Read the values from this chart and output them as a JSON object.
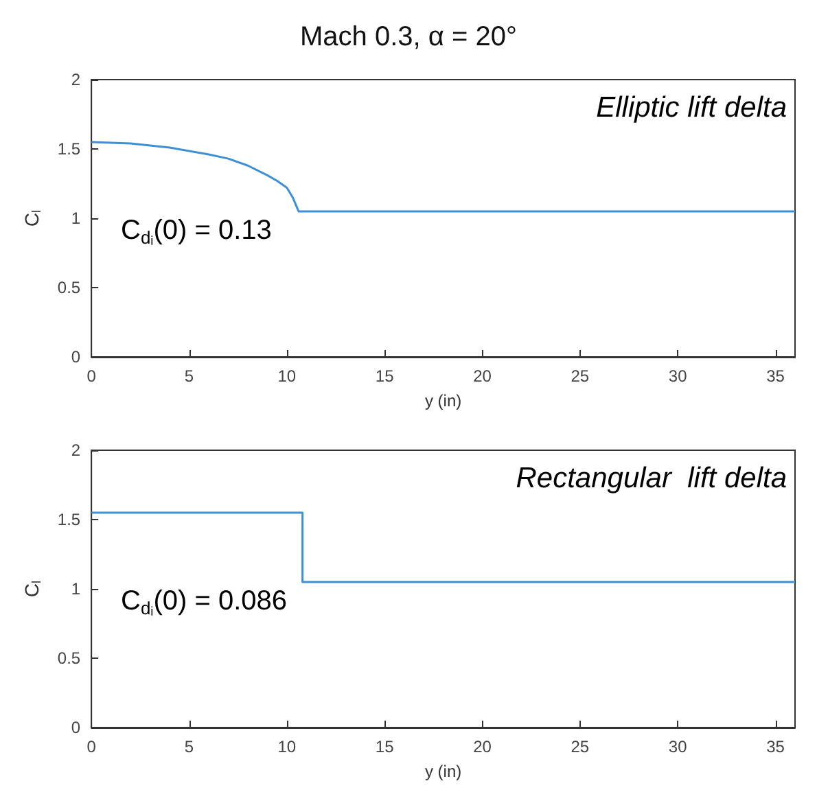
{
  "chart_data": [
    {
      "type": "line",
      "title": "Mach 0.3, α = 20°",
      "xlabel": "y (in)",
      "ylabel": "C$_{l}$",
      "annotations": [
        "Elliptic lift delta",
        "C$_{dᵢ}$(0) = 0.13"
      ],
      "x": [
        0,
        2,
        4,
        6,
        7,
        8,
        9,
        9.5,
        10,
        10.3,
        10.6,
        36
      ],
      "series": [
        {
          "color": "#3d8fd6",
          "values": [
            1.55,
            1.54,
            1.51,
            1.46,
            1.43,
            1.38,
            1.31,
            1.27,
            1.22,
            1.15,
            1.05,
            1.05
          ]
        }
      ],
      "xlim": [
        0,
        36
      ],
      "xticks": [
        0,
        5,
        10,
        15,
        20,
        25,
        30,
        35
      ],
      "ylim": [
        0,
        2
      ],
      "yticks": [
        0,
        0.5,
        1,
        1.5,
        2
      ],
      "grid": false
    },
    {
      "type": "line",
      "xlabel": "y (in)",
      "ylabel": "C$_{l}$",
      "annotations": [
        "Rectangular  lift delta",
        "C$_{dᵢ}$(0) = 0.086"
      ],
      "x": [
        0,
        10.8,
        10.8,
        36
      ],
      "series": [
        {
          "color": "#3d8fd6",
          "values": [
            1.55,
            1.55,
            1.05,
            1.05
          ]
        }
      ],
      "xlim": [
        0,
        36
      ],
      "xticks": [
        0,
        5,
        10,
        15,
        20,
        25,
        30,
        35
      ],
      "ylim": [
        0,
        2
      ],
      "yticks": [
        0,
        0.5,
        1,
        1.5,
        2
      ],
      "grid": false
    }
  ]
}
